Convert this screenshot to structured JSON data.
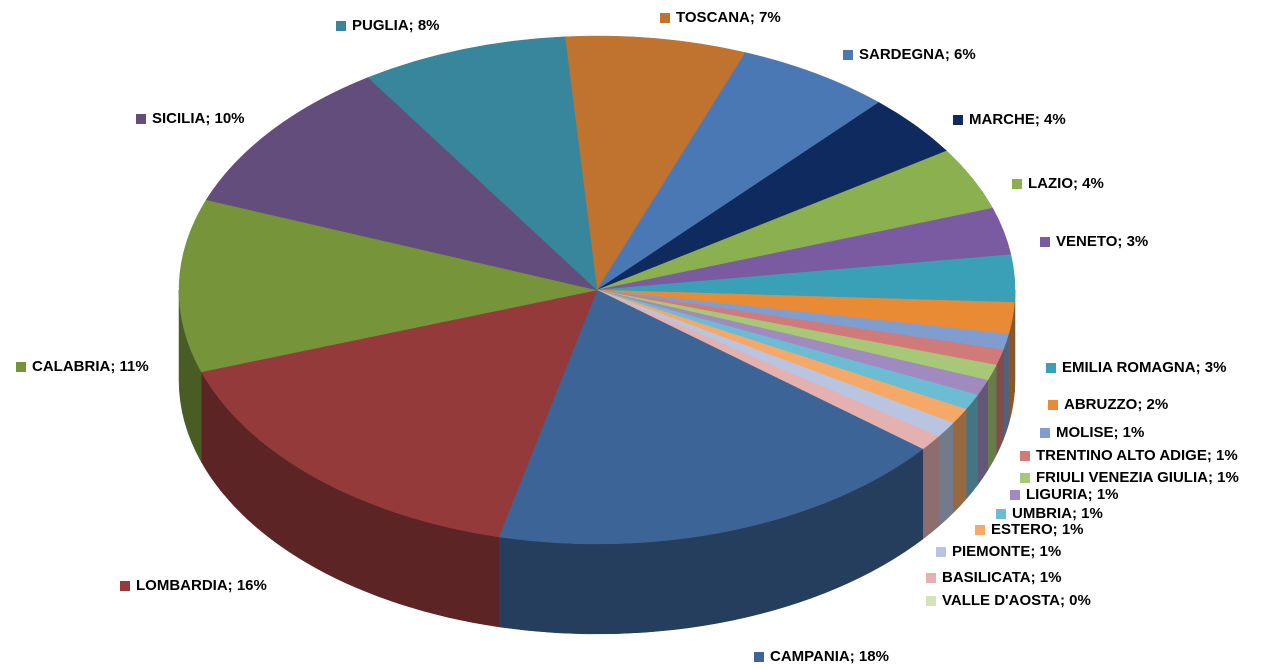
{
  "chart_data": {
    "type": "pie3d",
    "categories": [
      "TOSCANA; 7%",
      "SARDEGNA; 6%",
      "MARCHE; 4%",
      "LAZIO; 4%",
      "VENETO; 3%",
      "EMILIA ROMAGNA; 3%",
      "ABRUZZO; 2%",
      "MOLISE; 1%",
      "TRENTINO ALTO ADIGE; 1%",
      "FRIULI VENEZIA GIULIA; 1%",
      "LIGURIA; 1%",
      "UMBRIA; 1%",
      "ESTERO; 1%",
      "PIEMONTE; 1%",
      "BASILICATA; 1%",
      "VALLE D'AOSTA; 0%",
      "CAMPANIA; 18%",
      "LOMBARDIA; 16%",
      "CALABRIA; 11%",
      "SICILIA; 10%",
      "PUGLIA; 8%"
    ],
    "values": [
      7,
      6,
      4,
      4,
      3,
      3,
      2,
      1,
      1,
      1,
      1,
      1,
      1,
      1,
      1,
      0,
      18,
      16,
      11,
      10,
      8
    ],
    "colors": [
      "#c0722f",
      "#4a78b4",
      "#0e2a5e",
      "#8ab050",
      "#7a5aa0",
      "#3aa0b8",
      "#e98a35",
      "#7f9ecf",
      "#d07a7a",
      "#a8c878",
      "#a08ac0",
      "#6cbcd4",
      "#f5a868",
      "#b8c4e0",
      "#e4b0b0",
      "#d4e4b8",
      "#3d6496",
      "#943a3a",
      "#76943a",
      "#634d7c",
      "#37869c"
    ]
  }
}
